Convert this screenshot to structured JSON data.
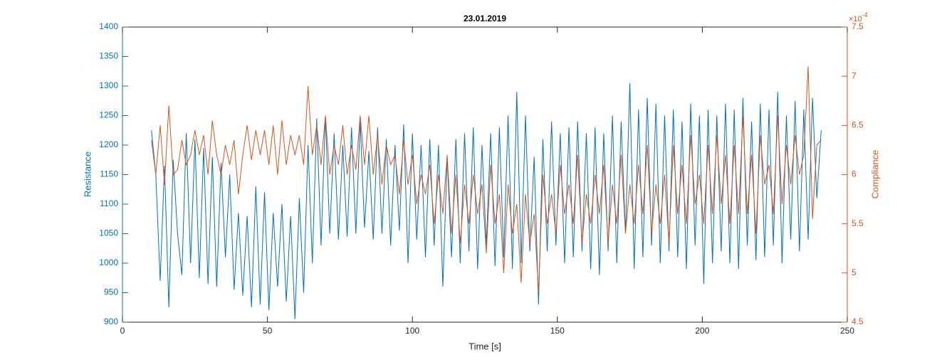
{
  "chart_data": {
    "type": "line",
    "title": "23.01.2019",
    "x_label": "Time [s]",
    "y_label": "Resistance",
    "y2_label": "Compliance",
    "y2_multiplier": {
      "base": "×10",
      "exponent": "-4"
    },
    "xlim": [
      0,
      250
    ],
    "xticks": [
      0,
      50,
      100,
      150,
      200,
      250
    ],
    "ylim": [
      900,
      1400
    ],
    "yticks": [
      900,
      950,
      1000,
      1050,
      1100,
      1150,
      1200,
      1250,
      1300,
      1350,
      1400
    ],
    "y2lim": [
      4.5,
      7.5
    ],
    "y2ticks": [
      4.5,
      5,
      5.5,
      6,
      6.5,
      7,
      7.5
    ],
    "y_color": "#0072bd",
    "y2_color": "#d95319",
    "x": [
      10,
      11.5,
      13,
      14.5,
      16,
      17.5,
      19,
      20.5,
      22,
      23.5,
      25,
      26.5,
      28,
      29.5,
      31,
      32.5,
      34,
      35.5,
      37,
      38.5,
      40,
      41.5,
      43,
      44.5,
      46,
      47.5,
      49,
      50.5,
      52,
      53.5,
      55,
      56.5,
      58,
      59.5,
      61,
      62.5,
      64,
      65.5,
      67,
      68.5,
      70,
      71.5,
      73,
      74.5,
      76,
      77.5,
      79,
      80.5,
      82,
      83.5,
      85,
      86.5,
      88,
      89.5,
      91,
      92.5,
      94,
      95.5,
      97,
      98.5,
      100,
      101.5,
      103,
      104.5,
      106,
      107.5,
      109,
      110.5,
      112,
      113.5,
      115,
      116.5,
      118,
      119.5,
      121,
      122.5,
      124,
      125.5,
      127,
      128.5,
      130,
      131.5,
      133,
      134.5,
      136,
      137.5,
      139,
      140.5,
      142,
      143.5,
      145,
      146.5,
      148,
      149.5,
      151,
      152.5,
      154,
      155.5,
      157,
      158.5,
      160,
      161.5,
      163,
      164.5,
      166,
      167.5,
      169,
      170.5,
      172,
      173.5,
      175,
      176.5,
      178,
      179.5,
      181,
      182.5,
      184,
      185.5,
      187,
      188.5,
      190,
      191.5,
      193,
      194.5,
      196,
      197.5,
      199,
      200.5,
      202,
      203.5,
      205,
      206.5,
      208,
      209.5,
      211,
      212.5,
      214,
      215.5,
      217,
      218.5,
      220,
      221.5,
      223,
      224.5,
      226,
      227.5,
      229,
      230.5,
      232,
      233.5,
      235,
      236.5,
      238,
      239.5,
      241
    ],
    "series": [
      {
        "name": "Resistance",
        "color": "#0072bd",
        "values": [
          1225,
          1150,
          970,
          1165,
          925,
          1175,
          1050,
          980,
          1220,
          1000,
          1210,
          975,
          1195,
          965,
          1180,
          960,
          1170,
          1010,
          1150,
          955,
          1085,
          945,
          1080,
          925,
          1130,
          930,
          1120,
          920,
          1085,
          960,
          1100,
          935,
          1080,
          905,
          1110,
          950,
          1200,
          1000,
          1245,
          1030,
          1250,
          1050,
          1220,
          1040,
          1200,
          1045,
          1230,
          1050,
          1240,
          1060,
          1190,
          1040,
          1230,
          1050,
          1210,
          1030,
          1200,
          1055,
          1235,
          1000,
          1220,
          1040,
          1200,
          1010,
          1210,
          1030,
          1200,
          960,
          1180,
          1010,
          1210,
          1000,
          1220,
          1020,
          1230,
          990,
          1200,
          1030,
          1220,
          995,
          1230,
          1010,
          1250,
          990,
          1290,
          1000,
          1250,
          1020,
          1180,
          930,
          1210,
          1020,
          1240,
          1030,
          1220,
          1000,
          1230,
          1010,
          1240,
          1020,
          1220,
          990,
          1230,
          980,
          1220,
          1020,
          1250,
          1000,
          1240,
          1050,
          1305,
          990,
          1260,
          1010,
          1280,
          1030,
          1270,
          1000,
          1250,
          1020,
          1260,
          1010,
          1240,
          990,
          1270,
          1030,
          1250,
          965,
          1260,
          1000,
          1250,
          1020,
          1270,
          1000,
          1260,
          990,
          1280,
          1030,
          1240,
          1005,
          1270,
          1010,
          1260,
          1030,
          1290,
          1000,
          1250,
          1040,
          1275,
          1020,
          1260,
          1040,
          1280,
          1110,
          1225
        ]
      },
      {
        "name": "Compliance",
        "color": "#d95319",
        "axis": "y2",
        "values": [
          6.35,
          6.0,
          6.5,
          5.9,
          6.7,
          6.0,
          6.05,
          6.35,
          6.1,
          6.2,
          6.45,
          6.2,
          6.4,
          6.0,
          6.55,
          6.2,
          6.0,
          6.3,
          6.1,
          6.35,
          5.8,
          6.2,
          6.5,
          6.15,
          6.45,
          6.2,
          6.45,
          6.1,
          6.5,
          6.0,
          6.55,
          6.1,
          6.4,
          6.2,
          6.4,
          6.1,
          6.9,
          6.2,
          6.5,
          6.1,
          6.6,
          6.0,
          6.3,
          6.1,
          6.5,
          6.0,
          6.3,
          6.05,
          6.6,
          6.1,
          6.6,
          6.0,
          6.4,
          5.9,
          6.3,
          6.1,
          6.2,
          5.8,
          6.35,
          5.9,
          6.2,
          5.7,
          6.0,
          5.8,
          6.1,
          5.5,
          6.0,
          5.6,
          6.2,
          5.4,
          6.0,
          5.3,
          5.9,
          5.5,
          6.0,
          5.6,
          5.9,
          5.2,
          6.1,
          5.5,
          5.8,
          5.0,
          5.9,
          5.4,
          5.7,
          4.9,
          5.8,
          5.3,
          5.6,
          4.8,
          6.0,
          5.5,
          5.8,
          5.4,
          6.1,
          5.6,
          5.9,
          5.5,
          6.2,
          5.3,
          5.8,
          5.5,
          6.0,
          5.6,
          6.1,
          5.3,
          5.9,
          5.5,
          6.2,
          5.4,
          5.9,
          5.5,
          6.1,
          5.6,
          6.3,
          5.4,
          5.9,
          5.5,
          6.0,
          5.3,
          6.3,
          5.6,
          6.1,
          5.5,
          6.4,
          5.7,
          6.0,
          5.5,
          6.3,
          5.6,
          6.4,
          5.7,
          6.2,
          5.5,
          6.3,
          5.6,
          6.6,
          5.6,
          6.2,
          5.4,
          6.4,
          5.9,
          6.1,
          5.6,
          6.6,
          5.7,
          6.3,
          5.9,
          6.4,
          6.0,
          6.2,
          7.1,
          5.55,
          6.3,
          6.35
        ]
      }
    ]
  }
}
